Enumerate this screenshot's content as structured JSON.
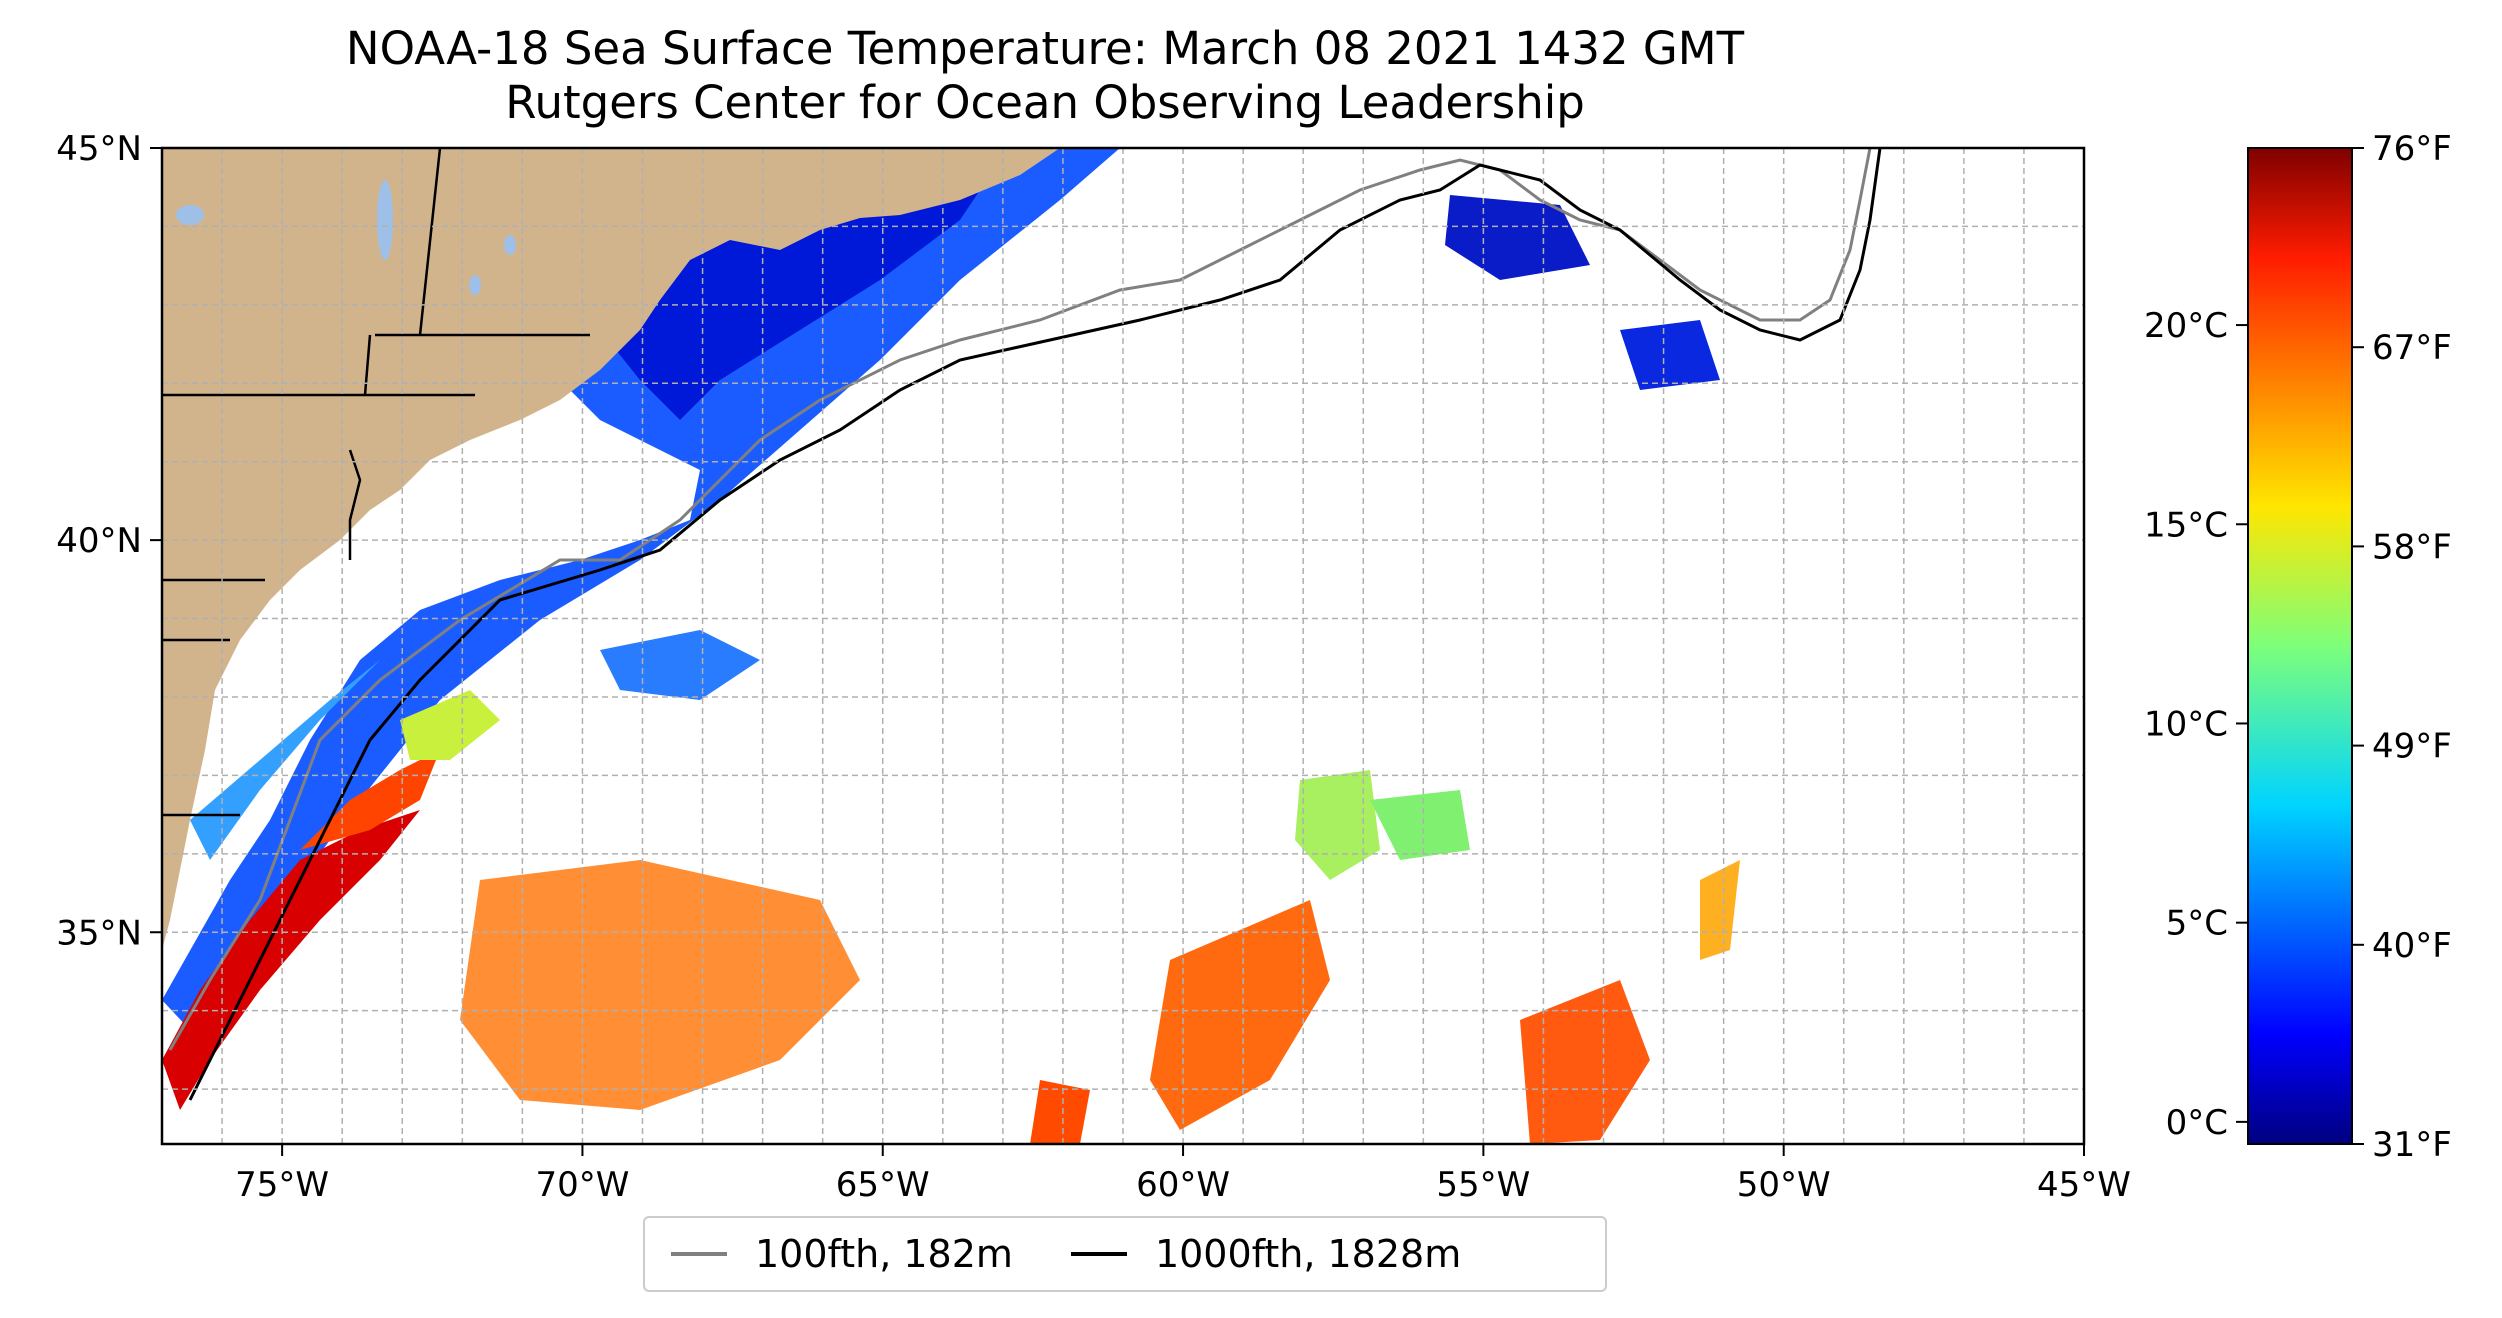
{
  "title": {
    "line1": "NOAA-18 Sea Surface Temperature: March 08 2021 1432 GMT",
    "line2": "Rutgers Center for Ocean Observing Leadership"
  },
  "map": {
    "lon_range": [
      -77,
      -45
    ],
    "lat_range": [
      32.3,
      45
    ],
    "lon_ticks": [
      "75°W",
      "70°W",
      "65°W",
      "60°W",
      "55°W",
      "50°W",
      "45°W"
    ],
    "lat_ticks": [
      "35°N",
      "40°N",
      "45°N"
    ],
    "land_color": "#d2b48c",
    "lake_color": "#9ebfe8",
    "gridlines": true
  },
  "colorbar": {
    "colormap": "jet",
    "celsius_ticks": [
      "0°C",
      "5°C",
      "10°C",
      "15°C",
      "20°C"
    ],
    "fahrenheit_ticks": [
      "31°F",
      "40°F",
      "49°F",
      "58°F",
      "67°F",
      "76°F"
    ]
  },
  "legend": {
    "items": [
      {
        "label": "100fth, 182m",
        "color": "#808080"
      },
      {
        "label": "1000fth, 1828m",
        "color": "#000000"
      }
    ]
  }
}
